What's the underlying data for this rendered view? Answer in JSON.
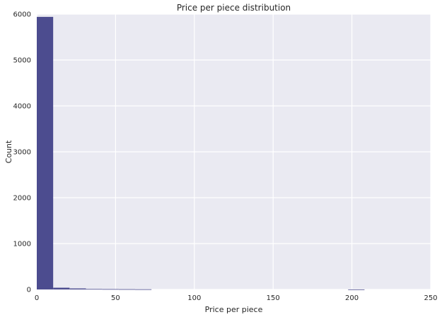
{
  "chart_data": {
    "type": "bar",
    "title": "Price per piece distribution",
    "xlabel": "Price per piece",
    "ylabel": "Count",
    "xlim": [
      0,
      250
    ],
    "ylim": [
      0,
      6000
    ],
    "xticks": [
      0,
      50,
      100,
      150,
      200,
      250
    ],
    "yticks": [
      0,
      1000,
      2000,
      3000,
      4000,
      5000,
      6000
    ],
    "xtick_labels": [
      "0",
      "50",
      "100",
      "150",
      "200",
      "250"
    ],
    "ytick_labels": [
      "0",
      "1000",
      "2000",
      "3000",
      "4000",
      "5000",
      "6000"
    ],
    "bin_width": 10.4,
    "bins": [
      {
        "x0": 0.0,
        "count": 5940
      },
      {
        "x0": 10.4,
        "count": 38
      },
      {
        "x0": 20.8,
        "count": 22
      },
      {
        "x0": 31.2,
        "count": 10
      },
      {
        "x0": 41.6,
        "count": 8
      },
      {
        "x0": 52.0,
        "count": 6
      },
      {
        "x0": 62.4,
        "count": 4
      },
      {
        "x0": 72.8,
        "count": 0
      },
      {
        "x0": 83.2,
        "count": 0
      },
      {
        "x0": 93.6,
        "count": 0
      },
      {
        "x0": 104.0,
        "count": 0
      },
      {
        "x0": 114.4,
        "count": 0
      },
      {
        "x0": 124.8,
        "count": 0
      },
      {
        "x0": 135.2,
        "count": 0
      },
      {
        "x0": 145.6,
        "count": 0
      },
      {
        "x0": 156.0,
        "count": 0
      },
      {
        "x0": 166.4,
        "count": 0
      },
      {
        "x0": 176.8,
        "count": 0
      },
      {
        "x0": 187.2,
        "count": 0
      },
      {
        "x0": 197.6,
        "count": 1
      }
    ],
    "grid": true,
    "colors": {
      "bar": "#4c4c8f",
      "plot_background": "#eaeaf2",
      "grid": "#ffffff"
    }
  }
}
